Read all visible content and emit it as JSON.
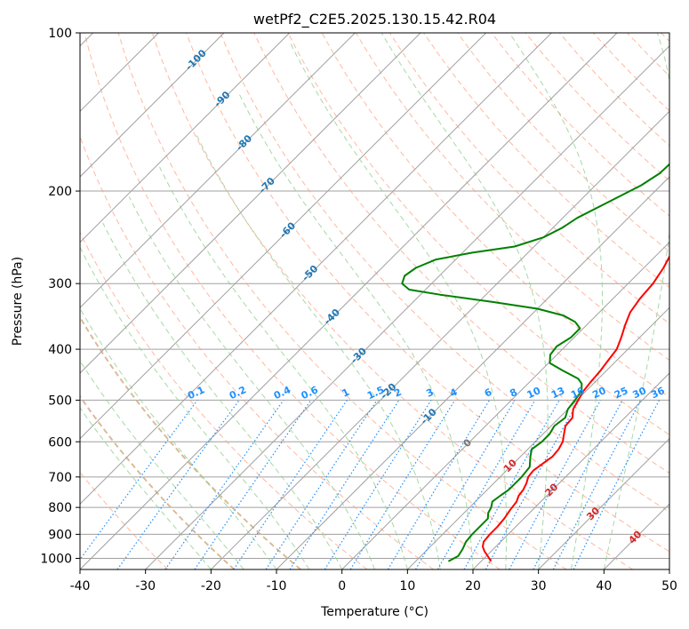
{
  "chart_data": {
    "type": "line",
    "title": "wetPf2_C2E5.2025.130.15.42.R04",
    "xlabel": "Temperature (°C)",
    "ylabel": "Pressure (hPa)",
    "xlim": [
      -40,
      50
    ],
    "ylim": [
      1050,
      100
    ],
    "y_scale": "log",
    "grid": true,
    "x_ticks": [
      "-40",
      "-30",
      "-20",
      "-10",
      "0",
      "10",
      "20",
      "30",
      "40",
      "50"
    ],
    "y_ticks": [
      "100",
      "200",
      "300",
      "400",
      "500",
      "600",
      "700",
      "800",
      "900",
      "1000"
    ],
    "colors": {
      "temperature": "#ff0000",
      "dewpoint": "#008000",
      "isotherm": "#a0a0a0",
      "dry_adiabat": "#ff9f80",
      "moist_adiabat": "#8fcf8f",
      "mixing_ratio": "#1e90ff",
      "iso_label_cold": "#1f77b4",
      "iso_label_zero": "#777777",
      "iso_label_warm": "#d62728",
      "dry_adiabat_label": "#d2b48c"
    },
    "series": [
      {
        "key": "temperature",
        "points": [
          [
            1013,
            21.5
          ],
          [
            990,
            20.2
          ],
          [
            970,
            19.0
          ],
          [
            950,
            18.0
          ],
          [
            930,
            17.4
          ],
          [
            900,
            17.2
          ],
          [
            870,
            17.2
          ],
          [
            840,
            17.0
          ],
          [
            810,
            16.6
          ],
          [
            780,
            16.3
          ],
          [
            760,
            15.7
          ],
          [
            740,
            15.5
          ],
          [
            720,
            15.0
          ],
          [
            700,
            14.3
          ],
          [
            680,
            14.1
          ],
          [
            660,
            14.5
          ],
          [
            640,
            14.9
          ],
          [
            620,
            14.7
          ],
          [
            600,
            14.2
          ],
          [
            580,
            13.2
          ],
          [
            560,
            12.2
          ],
          [
            540,
            12.0
          ],
          [
            520,
            10.8
          ],
          [
            500,
            10.2
          ],
          [
            480,
            9.6
          ],
          [
            460,
            9.3
          ],
          [
            440,
            9.1
          ],
          [
            420,
            8.7
          ],
          [
            400,
            8.3
          ],
          [
            380,
            7.2
          ],
          [
            360,
            5.9
          ],
          [
            340,
            4.7
          ],
          [
            320,
            4.1
          ],
          [
            300,
            3.8
          ],
          [
            280,
            3.0
          ],
          [
            260,
            1.8
          ],
          [
            240,
            0.3
          ],
          [
            220,
            -0.7
          ],
          [
            205,
            -0.8
          ],
          [
            195,
            -0.6
          ],
          [
            185,
            0.4
          ],
          [
            170,
            2.4
          ],
          [
            155,
            4.7
          ],
          [
            140,
            7.1
          ],
          [
            125,
            8.6
          ],
          [
            112,
            10.2
          ],
          [
            100,
            10.4
          ]
        ]
      },
      {
        "key": "dewpoint",
        "points": [
          [
            1013,
            15.0
          ],
          [
            990,
            15.7
          ],
          [
            960,
            15.3
          ],
          [
            930,
            14.7
          ],
          [
            900,
            14.5
          ],
          [
            870,
            14.5
          ],
          [
            840,
            14.5
          ],
          [
            820,
            13.7
          ],
          [
            800,
            13.3
          ],
          [
            780,
            12.6
          ],
          [
            760,
            12.9
          ],
          [
            740,
            13.3
          ],
          [
            700,
            13.3
          ],
          [
            670,
            13.0
          ],
          [
            640,
            11.5
          ],
          [
            620,
            10.6
          ],
          [
            600,
            11.0
          ],
          [
            580,
            11.0
          ],
          [
            560,
            10.5
          ],
          [
            540,
            10.9
          ],
          [
            520,
            10.0
          ],
          [
            500,
            9.7
          ],
          [
            480,
            9.3
          ],
          [
            465,
            8.2
          ],
          [
            455,
            6.9
          ],
          [
            440,
            3.5
          ],
          [
            425,
            0.2
          ],
          [
            410,
            -1.0
          ],
          [
            395,
            -1.3
          ],
          [
            380,
            -0.5
          ],
          [
            365,
            -0.5
          ],
          [
            355,
            -2.2
          ],
          [
            345,
            -5.0
          ],
          [
            335,
            -10.0
          ],
          [
            325,
            -18.0
          ],
          [
            315,
            -27.0
          ],
          [
            308,
            -32.5
          ],
          [
            300,
            -34.5
          ],
          [
            290,
            -35.3
          ],
          [
            280,
            -34.8
          ],
          [
            270,
            -33.0
          ],
          [
            262,
            -28.5
          ],
          [
            255,
            -23.0
          ],
          [
            245,
            -20.0
          ],
          [
            235,
            -18.6
          ],
          [
            225,
            -17.8
          ],
          [
            210,
            -15.5
          ],
          [
            195,
            -13.0
          ],
          [
            185,
            -12.0
          ],
          [
            170,
            -11.8
          ],
          [
            160,
            -12.5
          ],
          [
            150,
            -12.0
          ],
          [
            140,
            -12.3
          ],
          [
            130,
            -13.3
          ],
          [
            125,
            -12.5
          ],
          [
            118,
            -9.3
          ],
          [
            112,
            -7.2
          ],
          [
            105,
            -5.5
          ],
          [
            100,
            -3.9
          ]
        ]
      }
    ],
    "isotherm_labels": [
      {
        "text": "-100",
        "t": -100,
        "p": 112
      },
      {
        "text": "-90",
        "t": -90,
        "p": 133
      },
      {
        "text": "-80",
        "t": -80,
        "p": 161
      },
      {
        "text": "-70",
        "t": -70,
        "p": 194
      },
      {
        "text": "-60",
        "t": -60,
        "p": 236
      },
      {
        "text": "-50",
        "t": -50,
        "p": 285
      },
      {
        "text": "-40",
        "t": -40,
        "p": 345
      },
      {
        "text": "-30",
        "t": -30,
        "p": 409
      },
      {
        "text": "-20",
        "t": -20,
        "p": 478
      },
      {
        "text": "-10",
        "t": -10,
        "p": 534
      },
      {
        "text": "0",
        "t": 0,
        "p": 600
      },
      {
        "text": "10",
        "t": 10,
        "p": 663
      },
      {
        "text": "20",
        "t": 20,
        "p": 737
      },
      {
        "text": "30",
        "t": 30,
        "p": 818
      },
      {
        "text": "40",
        "t": 40,
        "p": 907
      }
    ],
    "mixing_ratio_labels": [
      "0.1",
      "0.2",
      "0.4",
      "0.6",
      "1",
      "1.5",
      "2",
      "3",
      "4",
      "6",
      "8",
      "10",
      "13",
      "16",
      "20",
      "25",
      "30",
      "36"
    ],
    "mixing_ratio_values": [
      0.1,
      0.2,
      0.4,
      0.6,
      1,
      1.5,
      2,
      3,
      4,
      6,
      8,
      10,
      13,
      16,
      20,
      25,
      30,
      36
    ]
  }
}
